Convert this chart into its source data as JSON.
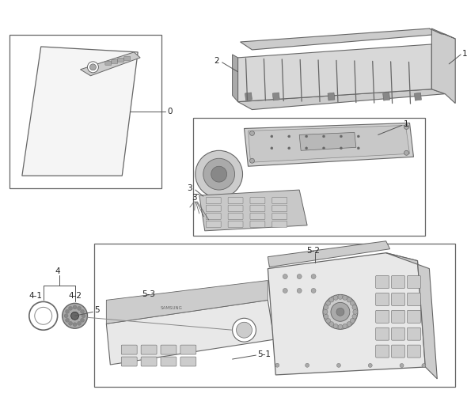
{
  "bg_color": "#ffffff",
  "lc": "#555555",
  "tc": "#222222",
  "fs": 7.5,
  "gray1": "#e8e8e8",
  "gray2": "#cccccc",
  "gray3": "#aaaaaa",
  "gray4": "#888888",
  "gray5": "#666666",
  "gray6": "#444444",
  "black": "#111111"
}
